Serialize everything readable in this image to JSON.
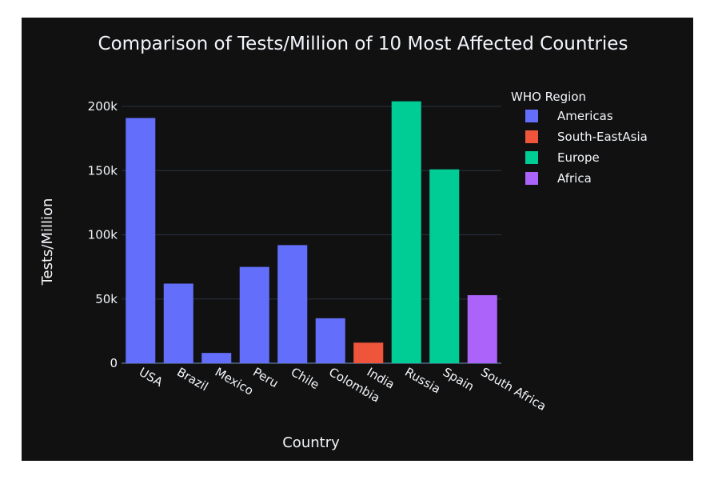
{
  "chart_data": {
    "type": "bar",
    "title": "Comparison of Tests/Million of 10 Most Affected Countries",
    "xlabel": "Country",
    "ylabel": "Tests/Million",
    "ylim": [
      0,
      210000
    ],
    "yticks": [
      0,
      50000,
      100000,
      150000,
      200000
    ],
    "ytick_labels": [
      "0",
      "50k",
      "100k",
      "150k",
      "200k"
    ],
    "grid": true,
    "legend_title": "WHO Region",
    "legend_position": "top-right",
    "series": [
      {
        "name": "Americas",
        "color": "#636efa"
      },
      {
        "name": "South-EastAsia",
        "color": "#ef553b"
      },
      {
        "name": "Europe",
        "color": "#00cc96"
      },
      {
        "name": "Africa",
        "color": "#ab63fa"
      }
    ],
    "bars": [
      {
        "category": "USA",
        "value": 191000,
        "series": "Americas"
      },
      {
        "category": "Brazil",
        "value": 62000,
        "series": "Americas"
      },
      {
        "category": "Mexico",
        "value": 8000,
        "series": "Americas"
      },
      {
        "category": "Peru",
        "value": 75000,
        "series": "Americas"
      },
      {
        "category": "Chile",
        "value": 92000,
        "series": "Americas"
      },
      {
        "category": "Colombia",
        "value": 35000,
        "series": "Americas"
      },
      {
        "category": "India",
        "value": 16000,
        "series": "South-EastAsia"
      },
      {
        "category": "Russia",
        "value": 204000,
        "series": "Europe"
      },
      {
        "category": "Spain",
        "value": 151000,
        "series": "Europe"
      },
      {
        "category": "South Africa",
        "value": 53000,
        "series": "Africa"
      }
    ]
  }
}
